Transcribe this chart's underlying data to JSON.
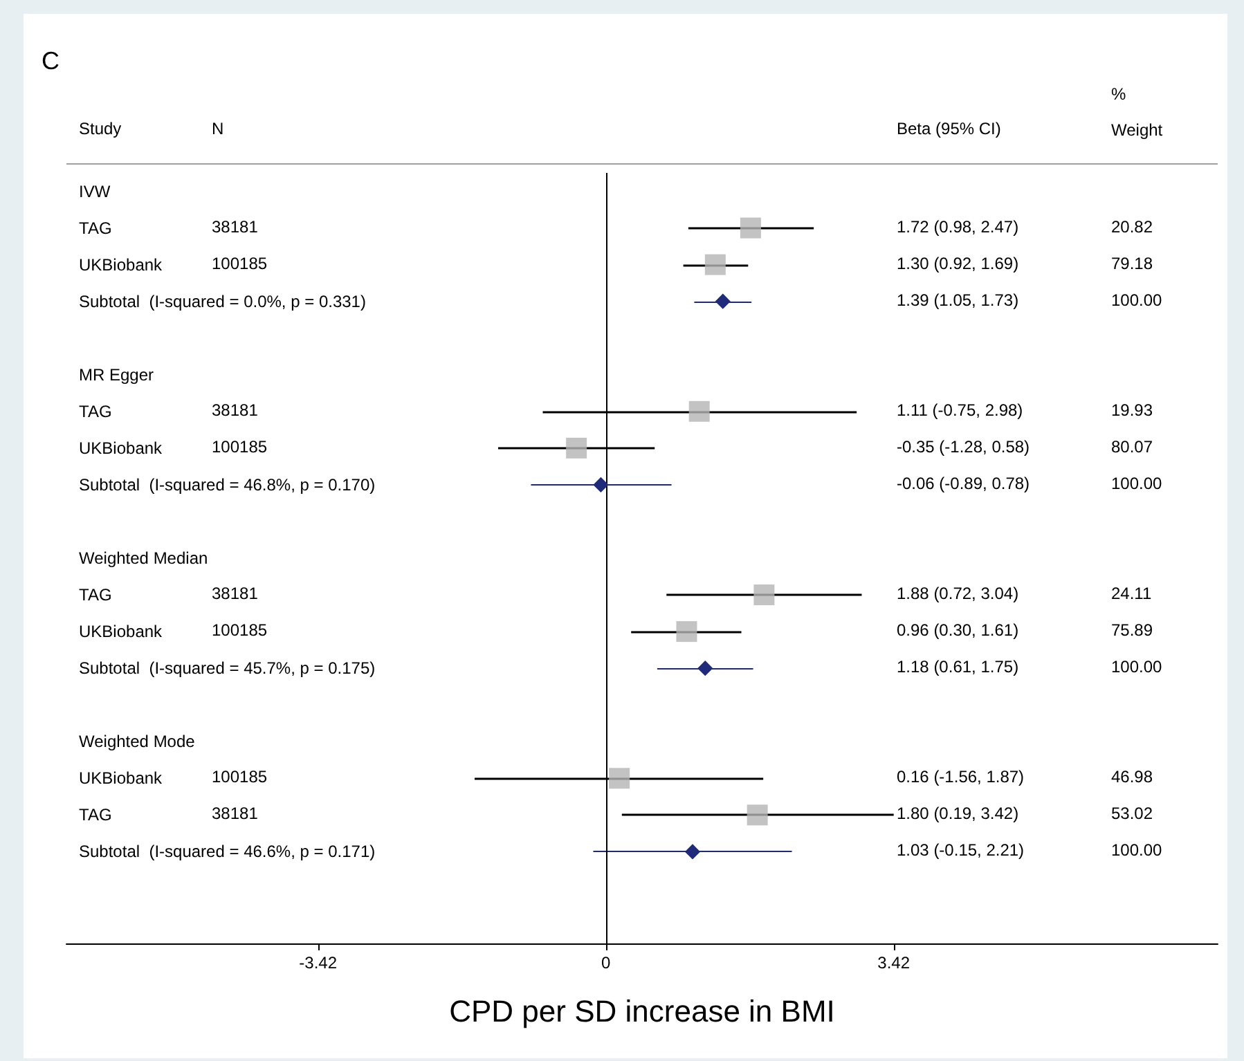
{
  "chart_data": {
    "type": "scatter",
    "orientation": "horizontal",
    "xlabel": "CPD per SD increase in BMI",
    "categories": [
      "IVW",
      "TAG",
      "UKBiobank",
      "Subtotal  (I-squared = 0.0%, p = 0.331)",
      null,
      "MR Egger",
      "TAG",
      "UKBiobank",
      "Subtotal  (I-squared = 46.8%, p = 0.170)",
      null,
      "Weighted Median",
      "TAG",
      "UKBiobank",
      "Subtotal  (I-squared = 45.7%, p = 0.175)",
      null,
      "Weighted Mode",
      "UKBiobank",
      "TAG",
      "Subtotal  (I-squared = 46.6%, p = 0.171)",
      null,
      null
    ],
    "y2_categories": [
      null,
      "20.82",
      "79.18",
      "100.00",
      null,
      null,
      "19.93",
      "80.07",
      "100.00",
      null,
      null,
      "24.11",
      "75.89",
      "100.00",
      null,
      null,
      "46.98",
      "53.02",
      "100.00",
      null,
      null
    ],
    "series": [
      {
        "marker": "square",
        "color": "#b4b4b4",
        "values": [
          null,
          1.72,
          1.3,
          null,
          null,
          null,
          1.11,
          -0.35,
          null,
          null,
          null,
          1.88,
          0.96,
          null,
          null,
          null,
          0.16,
          1.8,
          null,
          null,
          null
        ],
        "errors": [
          null,
          [
            0.98,
            2.47
          ],
          [
            0.92,
            1.69
          ],
          null,
          null,
          null,
          [
            -0.75,
            2.98
          ],
          [
            -1.28,
            0.58
          ],
          null,
          null,
          null,
          [
            0.72,
            3.04
          ],
          [
            0.3,
            1.61
          ],
          null,
          null,
          null,
          [
            -1.56,
            1.87
          ],
          [
            0.19,
            3.42
          ],
          null,
          null,
          null
        ]
      },
      {
        "marker": "diamond",
        "color": "#1f2a7a",
        "values": [
          null,
          null,
          null,
          1.39,
          null,
          null,
          null,
          null,
          -0.06,
          null,
          null,
          null,
          null,
          1.18,
          null,
          null,
          null,
          null,
          1.03,
          null,
          null
        ],
        "errors": [
          null,
          null,
          null,
          [
            1.05,
            1.73
          ],
          null,
          null,
          null,
          null,
          [
            -0.89,
            0.78
          ],
          null,
          null,
          null,
          null,
          [
            0.61,
            1.75
          ],
          null,
          null,
          null,
          null,
          [
            -0.15,
            2.21
          ],
          null,
          null
        ]
      }
    ],
    "xlim": [
      -6.41,
      7.27
    ],
    "xticks": [
      -3.42,
      0,
      3.42
    ],
    "tick_labels": "x",
    "ref_lines": [
      {
        "axis": "x",
        "value": 0,
        "color": "#000000"
      }
    ],
    "annotations": [
      "C",
      "Study",
      "N",
      "Beta (95% CI)",
      "% Weight",
      "38181",
      "100185",
      "38181",
      "100185",
      "38181",
      "100185",
      "100185",
      "38181",
      "1.72 (0.98, 2.47)",
      "1.30 (0.92, 1.69)",
      "1.39 (1.05, 1.73)",
      "1.11 (-0.75, 2.98)",
      "-0.35 (-1.28, 0.58)",
      "-0.06 (-0.89, 0.78)",
      "1.88 (0.72, 3.04)",
      "0.96 (0.30, 1.61)",
      "1.18 (0.61, 1.75)",
      "0.16 (-1.56, 1.87)",
      "1.80 (0.19, 3.42)",
      "1.03 (-0.15, 2.21)"
    ]
  }
}
